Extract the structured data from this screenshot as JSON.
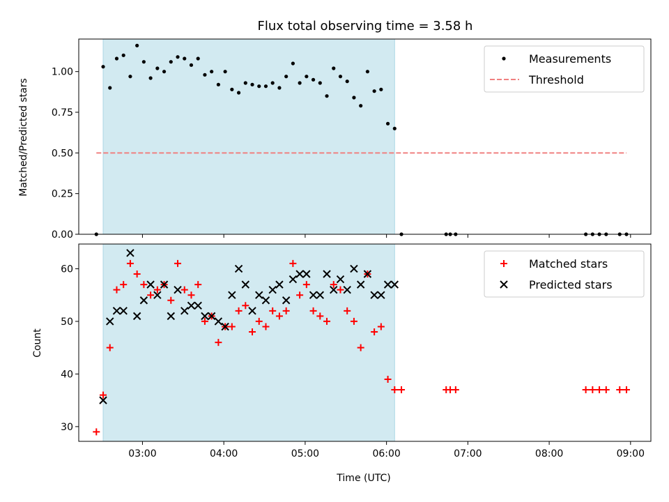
{
  "colors": {
    "observing_window": "#add8e6",
    "measurements": "#000000",
    "threshold": "#f08080",
    "matched": "#ff0000",
    "predicted": "#000000"
  },
  "chart_data": [
    {
      "type": "scatter",
      "title": "Flux total observing time = 3.58 h",
      "xlabel": "",
      "ylabel": "Matched/Predicted stars",
      "x_unit": "time UTC",
      "xlim": [
        "02:13",
        "09:15"
      ],
      "ylim": [
        0,
        1.2
      ],
      "y_ticks": [
        "0.00",
        "0.25",
        "0.50",
        "0.75",
        "1.00"
      ],
      "x_ticks": [
        "03:00",
        "04:00",
        "05:00",
        "06:00",
        "07:00",
        "08:00",
        "09:00"
      ],
      "tick_labels_visible": false,
      "observing_window": {
        "start": "02:31",
        "end": "06:06"
      },
      "legend": {
        "position": "top-right",
        "entries": [
          "Measurements",
          "Threshold"
        ]
      },
      "series": [
        {
          "name": "Measurements",
          "marker": "dot",
          "points": [
            [
              "02:26",
              0.0
            ],
            [
              "02:31",
              1.03
            ],
            [
              "02:36",
              0.9
            ],
            [
              "02:41",
              1.08
            ],
            [
              "02:46",
              1.1
            ],
            [
              "02:51",
              0.97
            ],
            [
              "02:56",
              1.16
            ],
            [
              "03:01",
              1.06
            ],
            [
              "03:06",
              0.96
            ],
            [
              "03:11",
              1.02
            ],
            [
              "03:16",
              1.0
            ],
            [
              "03:21",
              1.06
            ],
            [
              "03:26",
              1.09
            ],
            [
              "03:31",
              1.08
            ],
            [
              "03:36",
              1.04
            ],
            [
              "03:41",
              1.08
            ],
            [
              "03:46",
              0.98
            ],
            [
              "03:51",
              1.0
            ],
            [
              "03:56",
              0.92
            ],
            [
              "04:01",
              1.0
            ],
            [
              "04:06",
              0.89
            ],
            [
              "04:11",
              0.87
            ],
            [
              "04:16",
              0.93
            ],
            [
              "04:21",
              0.92
            ],
            [
              "04:26",
              0.91
            ],
            [
              "04:31",
              0.91
            ],
            [
              "04:36",
              0.93
            ],
            [
              "04:41",
              0.9
            ],
            [
              "04:46",
              0.97
            ],
            [
              "04:51",
              1.05
            ],
            [
              "04:56",
              0.93
            ],
            [
              "05:01",
              0.97
            ],
            [
              "05:06",
              0.95
            ],
            [
              "05:11",
              0.93
            ],
            [
              "05:16",
              0.85
            ],
            [
              "05:21",
              1.02
            ],
            [
              "05:26",
              0.97
            ],
            [
              "05:31",
              0.94
            ],
            [
              "05:36",
              0.84
            ],
            [
              "05:41",
              0.79
            ],
            [
              "05:46",
              1.0
            ],
            [
              "05:51",
              0.88
            ],
            [
              "05:56",
              0.89
            ],
            [
              "06:01",
              0.68
            ],
            [
              "06:06",
              0.65
            ],
            [
              "06:11",
              0.0
            ],
            [
              "06:44",
              0.0
            ],
            [
              "06:47",
              0.0
            ],
            [
              "06:51",
              0.0
            ],
            [
              "08:27",
              0.0
            ],
            [
              "08:32",
              0.0
            ],
            [
              "08:37",
              0.0
            ],
            [
              "08:42",
              0.0
            ],
            [
              "08:52",
              0.0
            ],
            [
              "08:57",
              0.0
            ]
          ]
        },
        {
          "name": "Threshold",
          "style": "dashed-line",
          "points": [
            [
              "02:26",
              0.5
            ],
            [
              "08:57",
              0.5
            ]
          ]
        }
      ]
    },
    {
      "type": "scatter",
      "title": "",
      "xlabel": "Time (UTC)",
      "ylabel": "Count",
      "xlim": [
        "02:13",
        "09:15"
      ],
      "ylim": [
        27.2,
        64.7
      ],
      "y_ticks": [
        "30",
        "40",
        "50",
        "60"
      ],
      "x_ticks": [
        "03:00",
        "04:00",
        "05:00",
        "06:00",
        "07:00",
        "08:00",
        "09:00"
      ],
      "tick_labels_visible": true,
      "observing_window": {
        "start": "02:31",
        "end": "06:06"
      },
      "legend": {
        "position": "top-right",
        "entries": [
          "Matched stars",
          "Predicted stars"
        ]
      },
      "series": [
        {
          "name": "Matched stars",
          "marker": "plus",
          "points": [
            [
              "02:26",
              29
            ],
            [
              "02:31",
              36
            ],
            [
              "02:36",
              45
            ],
            [
              "02:41",
              56
            ],
            [
              "02:46",
              57
            ],
            [
              "02:51",
              61
            ],
            [
              "02:56",
              59
            ],
            [
              "03:01",
              57
            ],
            [
              "03:06",
              55
            ],
            [
              "03:11",
              56
            ],
            [
              "03:16",
              57
            ],
            [
              "03:21",
              54
            ],
            [
              "03:26",
              61
            ],
            [
              "03:31",
              56
            ],
            [
              "03:36",
              55
            ],
            [
              "03:41",
              57
            ],
            [
              "03:46",
              50
            ],
            [
              "03:51",
              51
            ],
            [
              "03:56",
              46
            ],
            [
              "04:01",
              49
            ],
            [
              "04:06",
              49
            ],
            [
              "04:11",
              52
            ],
            [
              "04:16",
              53
            ],
            [
              "04:21",
              48
            ],
            [
              "04:26",
              50
            ],
            [
              "04:31",
              49
            ],
            [
              "04:36",
              52
            ],
            [
              "04:41",
              51
            ],
            [
              "04:46",
              52
            ],
            [
              "04:51",
              61
            ],
            [
              "04:56",
              55
            ],
            [
              "05:01",
              57
            ],
            [
              "05:06",
              52
            ],
            [
              "05:11",
              51
            ],
            [
              "05:16",
              50
            ],
            [
              "05:21",
              57
            ],
            [
              "05:26",
              56
            ],
            [
              "05:31",
              52
            ],
            [
              "05:36",
              50
            ],
            [
              "05:41",
              45
            ],
            [
              "05:46",
              59
            ],
            [
              "05:51",
              48
            ],
            [
              "05:56",
              49
            ],
            [
              "06:01",
              39
            ],
            [
              "06:06",
              37
            ],
            [
              "06:11",
              37
            ],
            [
              "06:44",
              37
            ],
            [
              "06:47",
              37
            ],
            [
              "06:51",
              37
            ],
            [
              "08:27",
              37
            ],
            [
              "08:32",
              37
            ],
            [
              "08:37",
              37
            ],
            [
              "08:42",
              37
            ],
            [
              "08:52",
              37
            ],
            [
              "08:57",
              37
            ]
          ]
        },
        {
          "name": "Predicted stars",
          "marker": "x",
          "points": [
            [
              "02:31",
              35
            ],
            [
              "02:36",
              50
            ],
            [
              "02:41",
              52
            ],
            [
              "02:46",
              52
            ],
            [
              "02:51",
              63
            ],
            [
              "02:56",
              51
            ],
            [
              "03:01",
              54
            ],
            [
              "03:06",
              57
            ],
            [
              "03:11",
              55
            ],
            [
              "03:16",
              57
            ],
            [
              "03:21",
              51
            ],
            [
              "03:26",
              56
            ],
            [
              "03:31",
              52
            ],
            [
              "03:36",
              53
            ],
            [
              "03:41",
              53
            ],
            [
              "03:46",
              51
            ],
            [
              "03:51",
              51
            ],
            [
              "03:56",
              50
            ],
            [
              "04:01",
              49
            ],
            [
              "04:06",
              55
            ],
            [
              "04:11",
              60
            ],
            [
              "04:16",
              57
            ],
            [
              "04:21",
              52
            ],
            [
              "04:26",
              55
            ],
            [
              "04:31",
              54
            ],
            [
              "04:36",
              56
            ],
            [
              "04:41",
              57
            ],
            [
              "04:46",
              54
            ],
            [
              "04:51",
              58
            ],
            [
              "04:56",
              59
            ],
            [
              "05:01",
              59
            ],
            [
              "05:06",
              55
            ],
            [
              "05:11",
              55
            ],
            [
              "05:16",
              59
            ],
            [
              "05:21",
              56
            ],
            [
              "05:26",
              58
            ],
            [
              "05:31",
              56
            ],
            [
              "05:36",
              60
            ],
            [
              "05:41",
              57
            ],
            [
              "05:46",
              59
            ],
            [
              "05:51",
              55
            ],
            [
              "05:56",
              55
            ],
            [
              "06:01",
              57
            ],
            [
              "06:06",
              57
            ]
          ]
        }
      ]
    }
  ]
}
